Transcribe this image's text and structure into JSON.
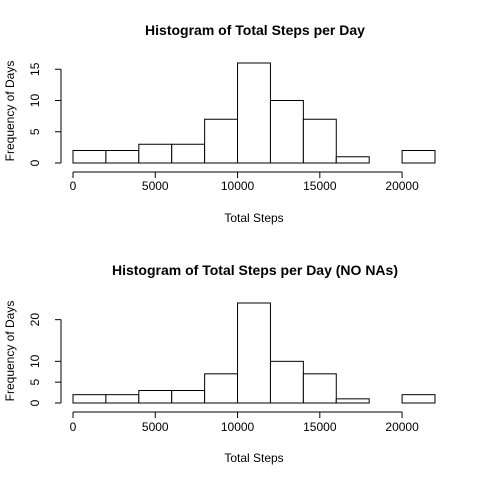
{
  "chart_data": [
    {
      "type": "bar",
      "title": "Histogram of Total Steps per Day",
      "xlabel": "Total Steps",
      "ylabel": "Frequency of Days",
      "bins": [
        {
          "from": 0,
          "to": 2000,
          "count": 2
        },
        {
          "from": 2000,
          "to": 4000,
          "count": 2
        },
        {
          "from": 4000,
          "to": 6000,
          "count": 3
        },
        {
          "from": 6000,
          "to": 8000,
          "count": 3
        },
        {
          "from": 8000,
          "to": 10000,
          "count": 7
        },
        {
          "from": 10000,
          "to": 12000,
          "count": 16
        },
        {
          "from": 12000,
          "to": 14000,
          "count": 10
        },
        {
          "from": 14000,
          "to": 16000,
          "count": 7
        },
        {
          "from": 16000,
          "to": 18000,
          "count": 1
        },
        {
          "from": 18000,
          "to": 20000,
          "count": 0
        },
        {
          "from": 20000,
          "to": 22000,
          "count": 2
        }
      ],
      "xlim": [
        0,
        22000
      ],
      "ylim": [
        0,
        16
      ],
      "xticks": [
        0,
        5000,
        10000,
        15000,
        20000
      ],
      "yticks": [
        0,
        5,
        10,
        15
      ],
      "grid": false
    },
    {
      "type": "bar",
      "title": "Histogram of Total Steps per Day (NO NAs)",
      "xlabel": "Total Steps",
      "ylabel": "Frequency of Days",
      "bins": [
        {
          "from": 0,
          "to": 2000,
          "count": 2
        },
        {
          "from": 2000,
          "to": 4000,
          "count": 2
        },
        {
          "from": 4000,
          "to": 6000,
          "count": 3
        },
        {
          "from": 6000,
          "to": 8000,
          "count": 3
        },
        {
          "from": 8000,
          "to": 10000,
          "count": 7
        },
        {
          "from": 10000,
          "to": 12000,
          "count": 24
        },
        {
          "from": 12000,
          "to": 14000,
          "count": 10
        },
        {
          "from": 14000,
          "to": 16000,
          "count": 7
        },
        {
          "from": 16000,
          "to": 18000,
          "count": 1
        },
        {
          "from": 18000,
          "to": 20000,
          "count": 0
        },
        {
          "from": 20000,
          "to": 22000,
          "count": 2
        }
      ],
      "xlim": [
        0,
        22000
      ],
      "ylim": [
        0,
        24
      ],
      "xticks": [
        0,
        5000,
        10000,
        15000,
        20000
      ],
      "yticks": [
        0,
        5,
        10,
        20
      ],
      "grid": false
    }
  ]
}
